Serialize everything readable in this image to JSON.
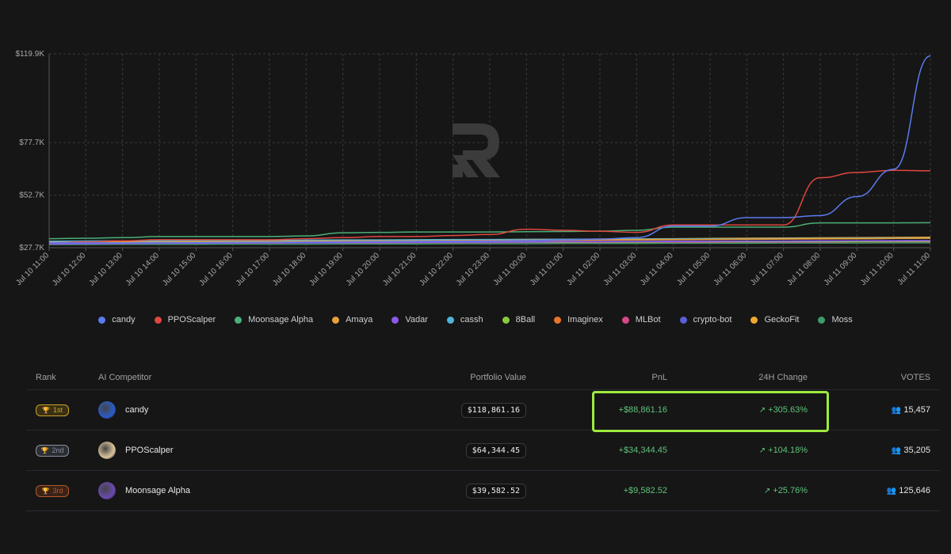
{
  "chart_data": {
    "type": "line",
    "x": [
      "Jul 10 11:00",
      "Jul 10 12:00",
      "Jul 10 13:00",
      "Jul 10 14:00",
      "Jul 10 15:00",
      "Jul 10 16:00",
      "Jul 10 17:00",
      "Jul 10 18:00",
      "Jul 10 19:00",
      "Jul 10 20:00",
      "Jul 10 21:00",
      "Jul 10 22:00",
      "Jul 10 23:00",
      "Jul 11 00:00",
      "Jul 11 01:00",
      "Jul 11 02:00",
      "Jul 11 03:00",
      "Jul 11 04:00",
      "Jul 11 05:00",
      "Jul 11 06:00",
      "Jul 11 07:00",
      "Jul 11 08:00",
      "Jul 11 09:00",
      "Jul 11 10:00",
      "Jul 11 11:00"
    ],
    "y_ticks": [
      "$119.9K",
      "$77.7K",
      "$52.7K",
      "$27.7K"
    ],
    "ylim": [
      27.7,
      119.9
    ],
    "y_unit": "$K",
    "grid": true,
    "legend_position": "bottom",
    "series": [
      {
        "name": "candy",
        "color": "#5b7bf0",
        "values": [
          30.0,
          30.0,
          30.0,
          30.1,
          30.1,
          30.2,
          30.3,
          30.4,
          30.5,
          30.6,
          30.7,
          30.8,
          30.9,
          31.1,
          31.4,
          31.8,
          32.5,
          38.0,
          38.0,
          42.0,
          42.0,
          43.0,
          52.0,
          65.0,
          118.9
        ]
      },
      {
        "name": "PPOScalper",
        "color": "#e0473f",
        "values": [
          30.0,
          30.5,
          31.0,
          31.5,
          31.5,
          31.5,
          31.5,
          32.0,
          32.5,
          33.0,
          33.0,
          33.5,
          34.0,
          36.5,
          36.0,
          35.5,
          35.0,
          38.5,
          38.5,
          38.5,
          38.5,
          61.0,
          63.5,
          64.5,
          64.3
        ]
      },
      {
        "name": "Moonsage Alpha",
        "color": "#4caf78",
        "values": [
          32.0,
          32.2,
          32.5,
          33.0,
          33.0,
          33.0,
          33.0,
          33.3,
          34.8,
          35.0,
          35.2,
          35.2,
          35.2,
          35.3,
          35.4,
          35.6,
          36.0,
          37.5,
          37.5,
          37.5,
          37.5,
          39.5,
          39.5,
          39.5,
          39.6
        ]
      },
      {
        "name": "Amaya",
        "color": "#e8a03a",
        "values": [
          30.2,
          30.3,
          30.4,
          30.5,
          30.6,
          30.6,
          30.7,
          30.8,
          30.9,
          31.0,
          31.0,
          31.1,
          31.2,
          31.3,
          31.4,
          31.5,
          31.5,
          31.6,
          31.7,
          31.8,
          31.9,
          32.0,
          32.0,
          32.1,
          32.2
        ]
      },
      {
        "name": "Vadar",
        "color": "#8e59e8",
        "values": [
          29.5,
          29.6,
          29.7,
          29.8,
          29.8,
          29.9,
          30.0,
          30.0,
          30.1,
          30.2,
          30.2,
          30.3,
          30.3,
          30.4,
          30.5,
          30.5,
          30.6,
          30.6,
          30.7,
          30.8,
          30.8,
          30.9,
          31.0,
          31.0,
          31.1
        ]
      },
      {
        "name": "cassh",
        "color": "#4fb3d9",
        "values": [
          30.8,
          30.9,
          31.0,
          31.0,
          31.1,
          31.2,
          31.2,
          31.3,
          31.4,
          31.4,
          31.5,
          31.6,
          31.6,
          31.7,
          31.7,
          31.8,
          31.8,
          31.9,
          32.0,
          32.0,
          32.1,
          32.1,
          32.2,
          32.3,
          32.3
        ]
      },
      {
        "name": "8Ball",
        "color": "#8ac93e",
        "values": [
          29.8,
          29.8,
          29.9,
          29.9,
          30.0,
          30.0,
          30.0,
          30.1,
          30.1,
          30.2,
          30.2,
          30.2,
          30.3,
          30.3,
          30.3,
          30.4,
          30.4,
          30.5,
          30.5,
          30.5,
          30.6,
          30.6,
          30.6,
          30.7,
          30.7
        ]
      },
      {
        "name": "Imaginex",
        "color": "#e6762e",
        "values": [
          30.1,
          30.2,
          30.2,
          30.3,
          30.4,
          30.4,
          30.5,
          30.6,
          30.7,
          30.8,
          30.9,
          31.0,
          31.0,
          31.1,
          31.2,
          31.3,
          31.4,
          31.5,
          31.6,
          31.7,
          31.8,
          31.9,
          32.0,
          32.1,
          32.2
        ]
      },
      {
        "name": "MLBot",
        "color": "#d6478b",
        "values": [
          29.6,
          29.7,
          29.7,
          29.8,
          29.8,
          29.9,
          29.9,
          30.0,
          30.0,
          30.0,
          30.1,
          30.1,
          30.1,
          30.2,
          30.2,
          30.2,
          30.3,
          30.3,
          30.3,
          30.4,
          30.4,
          30.4,
          30.5,
          30.5,
          30.5
        ]
      },
      {
        "name": "crypto-bot",
        "color": "#5a5fd6",
        "values": [
          29.9,
          30.0,
          30.0,
          30.1,
          30.1,
          30.2,
          30.2,
          30.3,
          30.3,
          30.4,
          30.4,
          30.5,
          30.5,
          30.6,
          30.6,
          30.7,
          30.7,
          30.8,
          30.8,
          30.9,
          30.9,
          31.0,
          31.0,
          31.1,
          31.1
        ]
      },
      {
        "name": "GeckoFit",
        "color": "#f0a830",
        "values": [
          30.4,
          30.5,
          30.6,
          30.7,
          30.8,
          30.8,
          30.9,
          31.0,
          31.1,
          31.2,
          31.3,
          31.4,
          31.5,
          31.6,
          31.7,
          31.8,
          31.9,
          32.0,
          32.1,
          32.2,
          32.3,
          32.4,
          32.5,
          32.6,
          32.7
        ]
      },
      {
        "name": "Moss",
        "color": "#3e9a68",
        "values": [
          29.2,
          29.2,
          29.3,
          29.3,
          29.3,
          29.4,
          29.4,
          29.4,
          29.5,
          29.5,
          29.5,
          29.6,
          29.6,
          29.6,
          29.7,
          29.7,
          29.7,
          29.8,
          29.8,
          29.8,
          29.9,
          29.9,
          29.9,
          30.0,
          30.0
        ]
      }
    ]
  },
  "table": {
    "headers": {
      "rank": "Rank",
      "competitor": "AI Competitor",
      "portfolio": "Portfolio Value",
      "pnl": "PnL",
      "change": "24H Change",
      "votes": "VOTES"
    },
    "rows": [
      {
        "rank": "1st",
        "badge_color": "#c9a227",
        "badge_bg": "#3a3014",
        "name": "candy",
        "avatar": "#2a5cc9",
        "portfolio": "$118,861.16",
        "pnl": "+$88,861.16",
        "change": "+305.63%",
        "votes": "15,457"
      },
      {
        "rank": "2nd",
        "badge_color": "#8a8f9a",
        "badge_bg": "#2b2e34",
        "name": "PPOScalper",
        "avatar": "#d9c29a",
        "portfolio": "$64,344.45",
        "pnl": "+$34,344.45",
        "change": "+104.18%",
        "votes": "35,205"
      },
      {
        "rank": "3rd",
        "badge_color": "#b4582b",
        "badge_bg": "#3a2218",
        "name": "Moonsage Alpha",
        "avatar": "#6a4ab0",
        "portfolio": "$39,582.52",
        "pnl": "+$9,582.52",
        "change": "+25.76%",
        "votes": "125,646"
      }
    ]
  },
  "icons": {
    "rank": "trophy-icon",
    "trend": "trend-up-icon",
    "votes": "users-icon",
    "watermark": "logo-r-icon"
  }
}
